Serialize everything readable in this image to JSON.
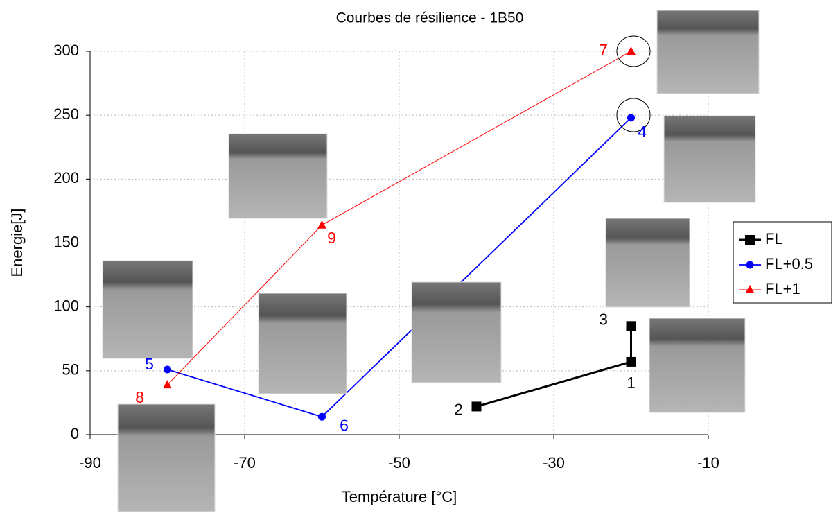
{
  "chart_data": {
    "type": "line",
    "title": "Courbes de résilience - 1B50",
    "x_label": "Température [°C]",
    "y_label": "Energie[J]",
    "xlim": [
      -90,
      -10
    ],
    "xticks": [
      -90,
      -70,
      -50,
      -30,
      -10
    ],
    "ylim": [
      0,
      300
    ],
    "yticks": [
      0,
      50,
      100,
      150,
      200,
      250,
      300
    ],
    "grid": true,
    "legend": "right",
    "series": [
      {
        "name": "FL",
        "color": "#000000",
        "marker": "square",
        "x": [
          -40,
          -20,
          -20
        ],
        "values": [
          22,
          57,
          85
        ],
        "point_labels": [
          "2",
          "1",
          "3"
        ]
      },
      {
        "name": "FL+0.5",
        "color": "#0000ff",
        "marker": "circle",
        "x": [
          -80,
          -60,
          -20
        ],
        "values": [
          51,
          14,
          248
        ],
        "point_labels": [
          "5",
          "6",
          "4"
        ]
      },
      {
        "name": "FL+1",
        "color": "#ff0000",
        "marker": "triangle",
        "x": [
          -80,
          -60,
          -20
        ],
        "values": [
          39,
          164,
          300
        ],
        "point_labels": [
          "8",
          "9",
          "7"
        ]
      }
    ]
  }
}
